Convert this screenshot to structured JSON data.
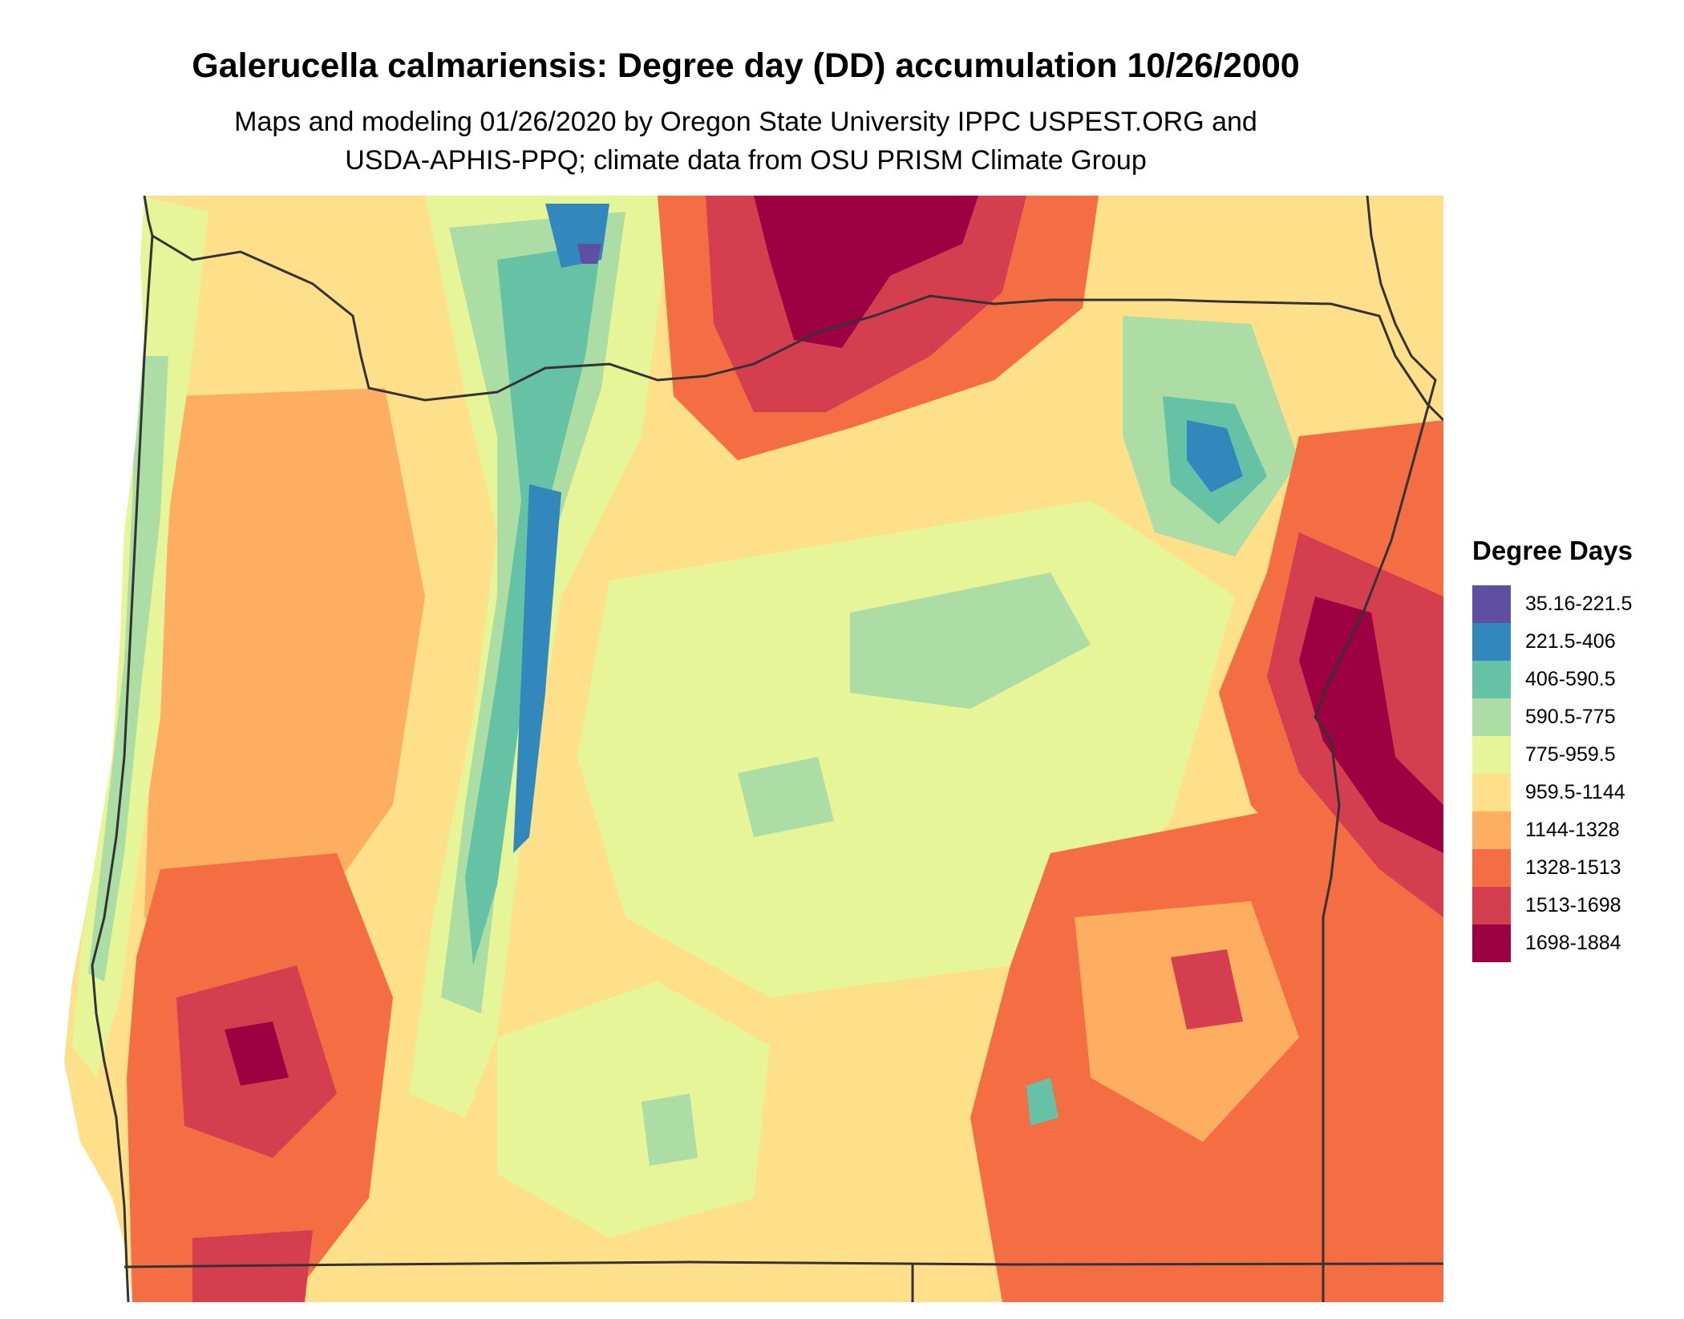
{
  "title": "Galerucella calmariensis: Degree day (DD) accumulation 10/26/2000",
  "subtitle_line1": "Maps and modeling 01/26/2020 by Oregon State University IPPC USPEST.ORG and",
  "subtitle_line2": "USDA-APHIS-PPQ; climate data from OSU PRISM Climate Group",
  "legend": {
    "title": "Degree Days",
    "items": [
      {
        "label": "35.16-221.5",
        "color": "#5e4fa2"
      },
      {
        "label": "221.5-406",
        "color": "#3288bd"
      },
      {
        "label": "406-590.5",
        "color": "#66c2a5"
      },
      {
        "label": "590.5-775",
        "color": "#abdda4"
      },
      {
        "label": "775-959.5",
        "color": "#e6f598"
      },
      {
        "label": "959.5-1144",
        "color": "#fee08b"
      },
      {
        "label": "1144-1328",
        "color": "#fdae61"
      },
      {
        "label": "1328-1513",
        "color": "#f46d43"
      },
      {
        "label": "1513-1698",
        "color": "#d53e4f"
      },
      {
        "label": "1698-1884",
        "color": "#9e0142"
      }
    ]
  },
  "map": {
    "region": "Oregon",
    "boundary_color": "#333333"
  }
}
